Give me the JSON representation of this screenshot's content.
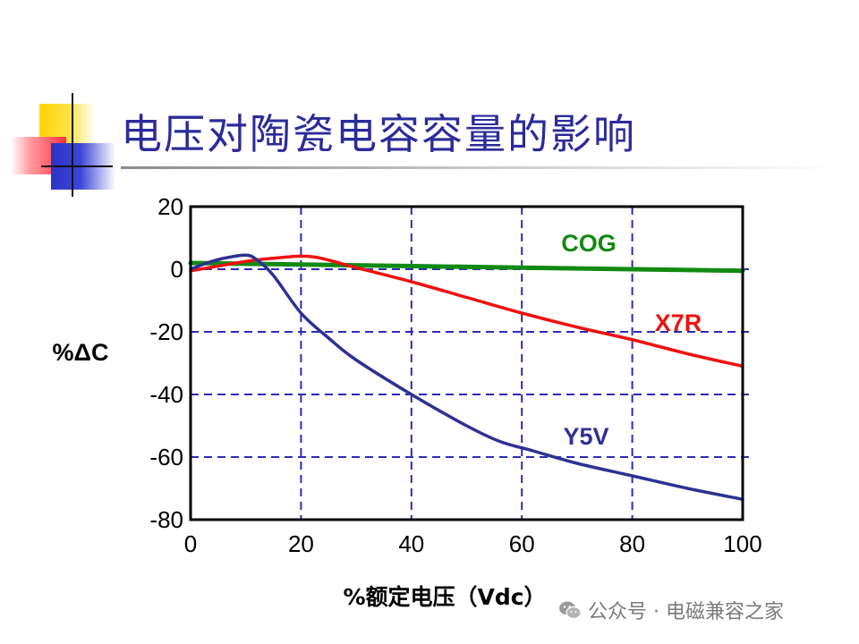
{
  "slide": {
    "title": "电压对陶瓷电容容量的影响",
    "watermark": "公众号 · 电磁兼容之家",
    "watermark_icon": "wechat-icon"
  },
  "chart_data": {
    "type": "line",
    "title": "",
    "xlabel": "%额定电压（Vdc）",
    "ylabel": "%ΔC",
    "xlim": [
      0,
      100
    ],
    "ylim": [
      -80,
      20
    ],
    "x_ticks": [
      "0",
      "20",
      "40",
      "60",
      "80",
      "100"
    ],
    "y_ticks": [
      "20",
      "0",
      "-20",
      "-40",
      "-60",
      "-80"
    ],
    "grid": "dashed",
    "grid_x": [
      20,
      40,
      60,
      80
    ],
    "grid_y": [
      0,
      -20,
      -40,
      -60
    ],
    "grid_color": "#2b2bb8",
    "series": [
      {
        "name": "COG",
        "color": "#118a11",
        "points": [
          [
            0,
            2
          ],
          [
            20,
            1.5
          ],
          [
            40,
            1
          ],
          [
            60,
            0.5
          ],
          [
            80,
            0
          ],
          [
            100,
            -0.5
          ]
        ]
      },
      {
        "name": "X7R",
        "color": "#ee1111",
        "points": [
          [
            0,
            -0.5
          ],
          [
            5,
            1
          ],
          [
            10,
            2.5
          ],
          [
            15,
            3.5
          ],
          [
            22,
            4
          ],
          [
            30,
            0.5
          ],
          [
            40,
            -4
          ],
          [
            50,
            -9
          ],
          [
            60,
            -14
          ],
          [
            70,
            -18.5
          ],
          [
            80,
            -22.5
          ],
          [
            90,
            -27
          ],
          [
            100,
            -31
          ]
        ]
      },
      {
        "name": "Y5V",
        "color": "#2e3192",
        "points": [
          [
            0,
            0
          ],
          [
            3,
            2
          ],
          [
            6,
            3.5
          ],
          [
            10,
            4.5
          ],
          [
            12,
            3
          ],
          [
            15,
            -2
          ],
          [
            20,
            -14
          ],
          [
            25,
            -22
          ],
          [
            30,
            -29
          ],
          [
            40,
            -40
          ],
          [
            50,
            -50
          ],
          [
            56,
            -55
          ],
          [
            62,
            -58
          ],
          [
            70,
            -62
          ],
          [
            80,
            -66
          ],
          [
            90,
            -70
          ],
          [
            100,
            -73.5
          ]
        ]
      }
    ]
  }
}
